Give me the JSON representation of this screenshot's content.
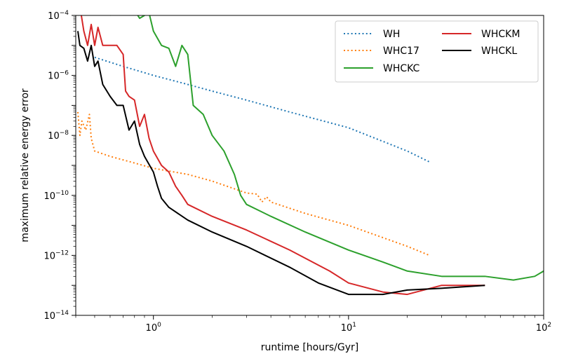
{
  "chart_data": {
    "type": "line",
    "title": "",
    "xlabel": "runtime [hours/Gyr]",
    "ylabel": "maximum relative energy error",
    "xscale": "log",
    "yscale": "log",
    "xlim": [
      0.4,
      100
    ],
    "ylim": [
      1e-14,
      0.0001
    ],
    "grid": false,
    "legend_position": "top-right",
    "x_ticks": [
      {
        "value": 1,
        "label": "10",
        "exp": "0"
      },
      {
        "value": 10,
        "label": "10",
        "exp": "1"
      },
      {
        "value": 100,
        "label": "10",
        "exp": "2"
      }
    ],
    "y_ticks": [
      {
        "value": 1e-14,
        "label": "10",
        "exp": "−14"
      },
      {
        "value": 1e-12,
        "label": "10",
        "exp": "−12"
      },
      {
        "value": 1e-10,
        "label": "10",
        "exp": "−10"
      },
      {
        "value": 1e-08,
        "label": "10",
        "exp": "−8"
      },
      {
        "value": 1e-06,
        "label": "10",
        "exp": "−6"
      },
      {
        "value": 0.0001,
        "label": "10",
        "exp": "−4"
      }
    ],
    "series": [
      {
        "name": "WH",
        "color": "#1f77b4",
        "dash": "dotted",
        "points": [
          [
            0.5,
            4e-06
          ],
          [
            0.7,
            2e-06
          ],
          [
            1.0,
            1e-06
          ],
          [
            1.5,
            5e-07
          ],
          [
            2.0,
            3e-07
          ],
          [
            3.0,
            1.5e-07
          ],
          [
            5.0,
            6e-08
          ],
          [
            10.0,
            1.8e-08
          ],
          [
            20.0,
            3e-09
          ],
          [
            26.0,
            1.3e-09
          ]
        ]
      },
      {
        "name": "WHC17",
        "color": "#ff7f0e",
        "dash": "dotted",
        "points": [
          [
            0.41,
            6e-08
          ],
          [
            0.42,
            1e-08
          ],
          [
            0.43,
            3e-08
          ],
          [
            0.45,
            1.5e-08
          ],
          [
            0.47,
            5e-08
          ],
          [
            0.48,
            8e-09
          ],
          [
            0.5,
            3e-09
          ],
          [
            0.6,
            2e-09
          ],
          [
            0.8,
            1.2e-09
          ],
          [
            1.0,
            8e-10
          ],
          [
            1.5,
            5e-10
          ],
          [
            2.0,
            3e-10
          ],
          [
            3.0,
            1.2e-10
          ],
          [
            3.4,
            1.1e-10
          ],
          [
            3.6,
            6e-11
          ],
          [
            3.8,
            9e-11
          ],
          [
            4.0,
            6e-11
          ],
          [
            6.0,
            2.5e-11
          ],
          [
            10.0,
            1e-11
          ],
          [
            20.0,
            2e-12
          ],
          [
            26.0,
            1e-12
          ]
        ]
      },
      {
        "name": "WHCKC",
        "color": "#2ca02c",
        "dash": "solid",
        "points": [
          [
            0.6,
            0.0001
          ],
          [
            0.75,
            0.0003
          ],
          [
            0.8,
            0.00015
          ],
          [
            0.85,
            8e-05
          ],
          [
            0.9,
            0.0001
          ],
          [
            0.95,
            0.00012
          ],
          [
            1.0,
            3e-05
          ],
          [
            1.1,
            1e-05
          ],
          [
            1.2,
            8e-06
          ],
          [
            1.3,
            2e-06
          ],
          [
            1.4,
            1e-05
          ],
          [
            1.5,
            5e-06
          ],
          [
            1.6,
            1e-07
          ],
          [
            1.8,
            5e-08
          ],
          [
            2.0,
            1e-08
          ],
          [
            2.3,
            3e-09
          ],
          [
            2.6,
            5e-10
          ],
          [
            2.8,
            1e-10
          ],
          [
            3.0,
            5e-11
          ],
          [
            4.0,
            2e-11
          ],
          [
            6.0,
            6e-12
          ],
          [
            10.0,
            1.5e-12
          ],
          [
            15.0,
            6e-13
          ],
          [
            20.0,
            3e-13
          ],
          [
            30.0,
            2e-13
          ],
          [
            50.0,
            2e-13
          ],
          [
            70.0,
            1.5e-13
          ],
          [
            90.0,
            2e-13
          ],
          [
            100.0,
            3e-13
          ]
        ]
      },
      {
        "name": "WHCKM",
        "color": "#d62728",
        "dash": "solid",
        "points": [
          [
            0.41,
            0.0001
          ],
          [
            0.42,
            0.0002
          ],
          [
            0.44,
            3e-05
          ],
          [
            0.46,
            1e-05
          ],
          [
            0.48,
            5e-05
          ],
          [
            0.5,
            1e-05
          ],
          [
            0.52,
            4e-05
          ],
          [
            0.55,
            1e-05
          ],
          [
            0.6,
            1e-05
          ],
          [
            0.65,
            1e-05
          ],
          [
            0.7,
            5e-06
          ],
          [
            0.72,
            3e-07
          ],
          [
            0.75,
            2e-07
          ],
          [
            0.8,
            1.5e-07
          ],
          [
            0.85,
            2e-08
          ],
          [
            0.9,
            5e-08
          ],
          [
            0.95,
            8e-09
          ],
          [
            1.0,
            3e-09
          ],
          [
            1.1,
            1e-09
          ],
          [
            1.2,
            6e-10
          ],
          [
            1.3,
            2e-10
          ],
          [
            1.4,
            1e-10
          ],
          [
            1.5,
            5e-11
          ],
          [
            2.0,
            2e-11
          ],
          [
            3.0,
            7e-12
          ],
          [
            5.0,
            1.5e-12
          ],
          [
            8.0,
            3e-13
          ],
          [
            10.0,
            1.2e-13
          ],
          [
            15.0,
            6e-14
          ],
          [
            20.0,
            5e-14
          ],
          [
            30.0,
            1e-13
          ],
          [
            50.0,
            1e-13
          ]
        ]
      },
      {
        "name": "WHCKL",
        "color": "#000000",
        "dash": "solid",
        "points": [
          [
            0.41,
            3e-05
          ],
          [
            0.42,
            1e-05
          ],
          [
            0.44,
            8e-06
          ],
          [
            0.46,
            3e-06
          ],
          [
            0.48,
            1e-05
          ],
          [
            0.5,
            2e-06
          ],
          [
            0.52,
            3e-06
          ],
          [
            0.55,
            5e-07
          ],
          [
            0.6,
            2e-07
          ],
          [
            0.65,
            1e-07
          ],
          [
            0.7,
            1e-07
          ],
          [
            0.75,
            1.5e-08
          ],
          [
            0.8,
            3e-08
          ],
          [
            0.85,
            5e-09
          ],
          [
            0.9,
            2e-09
          ],
          [
            1.0,
            6e-10
          ],
          [
            1.05,
            2e-10
          ],
          [
            1.1,
            8e-11
          ],
          [
            1.2,
            4e-11
          ],
          [
            1.5,
            1.5e-11
          ],
          [
            2.0,
            6e-12
          ],
          [
            3.0,
            2e-12
          ],
          [
            5.0,
            4e-13
          ],
          [
            7.0,
            1.2e-13
          ],
          [
            10.0,
            5e-14
          ],
          [
            15.0,
            5e-14
          ],
          [
            20.0,
            7e-14
          ],
          [
            30.0,
            8e-14
          ],
          [
            50.0,
            1e-13
          ]
        ]
      }
    ]
  }
}
